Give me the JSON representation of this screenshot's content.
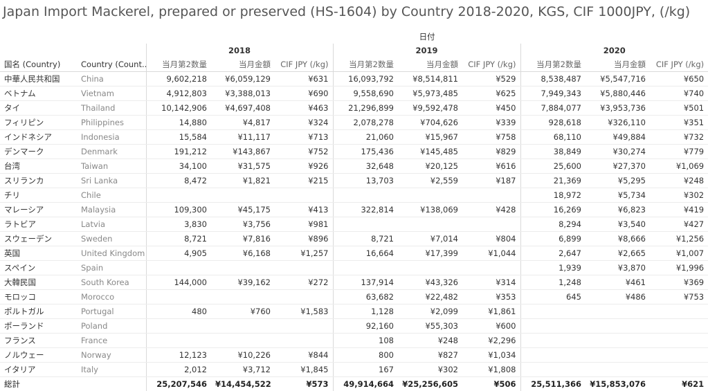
{
  "title": "Japan Import Mackerel, prepared or preserved (HS-1604) by Country 2018-2020, KGS, CIF 1000JPY, (/kg)",
  "header": {
    "date_caption": "日付",
    "col_country_jp": "国名 (Country)",
    "col_country_en": "Country (Count..",
    "years": [
      "2018",
      "2019",
      "2020"
    ],
    "measures": [
      "当月第2数量",
      "当月金額",
      "CIF JPY (/kg)"
    ]
  },
  "rows": [
    {
      "jp": "中華人民共和国",
      "en": "China",
      "v": [
        "9,602,218",
        "¥6,059,129",
        "¥631",
        "16,093,792",
        "¥8,514,811",
        "¥529",
        "8,538,487",
        "¥5,547,716",
        "¥650"
      ]
    },
    {
      "jp": "ベトナム",
      "en": "Vietnam",
      "v": [
        "4,912,803",
        "¥3,388,013",
        "¥690",
        "9,558,690",
        "¥5,973,485",
        "¥625",
        "7,949,343",
        "¥5,880,446",
        "¥740"
      ]
    },
    {
      "jp": "タイ",
      "en": "Thailand",
      "v": [
        "10,142,906",
        "¥4,697,408",
        "¥463",
        "21,296,899",
        "¥9,592,478",
        "¥450",
        "7,884,077",
        "¥3,953,736",
        "¥501"
      ]
    },
    {
      "jp": "フィリピン",
      "en": "Philippines",
      "v": [
        "14,880",
        "¥4,817",
        "¥324",
        "2,078,278",
        "¥704,626",
        "¥339",
        "928,618",
        "¥326,110",
        "¥351"
      ]
    },
    {
      "jp": "インドネシア",
      "en": "Indonesia",
      "v": [
        "15,584",
        "¥11,117",
        "¥713",
        "21,060",
        "¥15,967",
        "¥758",
        "68,110",
        "¥49,884",
        "¥732"
      ]
    },
    {
      "jp": "デンマーク",
      "en": "Denmark",
      "v": [
        "191,212",
        "¥143,867",
        "¥752",
        "175,436",
        "¥145,485",
        "¥829",
        "38,849",
        "¥30,274",
        "¥779"
      ]
    },
    {
      "jp": "台湾",
      "en": "Taiwan",
      "v": [
        "34,100",
        "¥31,575",
        "¥926",
        "32,648",
        "¥20,125",
        "¥616",
        "25,600",
        "¥27,370",
        "¥1,069"
      ]
    },
    {
      "jp": "スリランカ",
      "en": "Sri Lanka",
      "v": [
        "8,472",
        "¥1,821",
        "¥215",
        "13,703",
        "¥2,559",
        "¥187",
        "21,369",
        "¥5,295",
        "¥248"
      ]
    },
    {
      "jp": "チリ",
      "en": "Chile",
      "v": [
        "",
        "",
        "",
        "",
        "",
        "",
        "18,972",
        "¥5,734",
        "¥302"
      ]
    },
    {
      "jp": "マレーシア",
      "en": "Malaysia",
      "v": [
        "109,300",
        "¥45,175",
        "¥413",
        "322,814",
        "¥138,069",
        "¥428",
        "16,269",
        "¥6,823",
        "¥419"
      ]
    },
    {
      "jp": "ラトビア",
      "en": "Latvia",
      "v": [
        "3,830",
        "¥3,756",
        "¥981",
        "",
        "",
        "",
        "8,294",
        "¥3,540",
        "¥427"
      ]
    },
    {
      "jp": "スウェーデン",
      "en": "Sweden",
      "v": [
        "8,721",
        "¥7,816",
        "¥896",
        "8,721",
        "¥7,014",
        "¥804",
        "6,899",
        "¥8,666",
        "¥1,256"
      ]
    },
    {
      "jp": "英国",
      "en": "United Kingdom",
      "v": [
        "4,905",
        "¥6,168",
        "¥1,257",
        "16,664",
        "¥17,399",
        "¥1,044",
        "2,647",
        "¥2,665",
        "¥1,007"
      ]
    },
    {
      "jp": "スペイン",
      "en": "Spain",
      "v": [
        "",
        "",
        "",
        "",
        "",
        "",
        "1,939",
        "¥3,870",
        "¥1,996"
      ]
    },
    {
      "jp": "大韓民国",
      "en": "South Korea",
      "v": [
        "144,000",
        "¥39,162",
        "¥272",
        "137,914",
        "¥43,326",
        "¥314",
        "1,248",
        "¥461",
        "¥369"
      ]
    },
    {
      "jp": "モロッコ",
      "en": "Morocco",
      "v": [
        "",
        "",
        "",
        "63,682",
        "¥22,482",
        "¥353",
        "645",
        "¥486",
        "¥753"
      ]
    },
    {
      "jp": "ポルトガル",
      "en": "Portugal",
      "v": [
        "480",
        "¥760",
        "¥1,583",
        "1,128",
        "¥2,099",
        "¥1,861",
        "",
        "",
        ""
      ]
    },
    {
      "jp": "ポーランド",
      "en": "Poland",
      "v": [
        "",
        "",
        "",
        "92,160",
        "¥55,303",
        "¥600",
        "",
        "",
        ""
      ]
    },
    {
      "jp": "フランス",
      "en": "France",
      "v": [
        "",
        "",
        "",
        "108",
        "¥248",
        "¥2,296",
        "",
        "",
        ""
      ]
    },
    {
      "jp": "ノルウェー",
      "en": "Norway",
      "v": [
        "12,123",
        "¥10,226",
        "¥844",
        "800",
        "¥827",
        "¥1,034",
        "",
        "",
        ""
      ]
    },
    {
      "jp": "イタリア",
      "en": "Italy",
      "v": [
        "2,012",
        "¥3,712",
        "¥1,845",
        "167",
        "¥302",
        "¥1,808",
        "",
        "",
        ""
      ]
    }
  ],
  "total": {
    "label": "総計",
    "v": [
      "25,207,546",
      "¥14,454,522",
      "¥573",
      "49,914,664",
      "¥25,256,605",
      "¥506",
      "25,511,366",
      "¥15,853,076",
      "¥621"
    ]
  }
}
